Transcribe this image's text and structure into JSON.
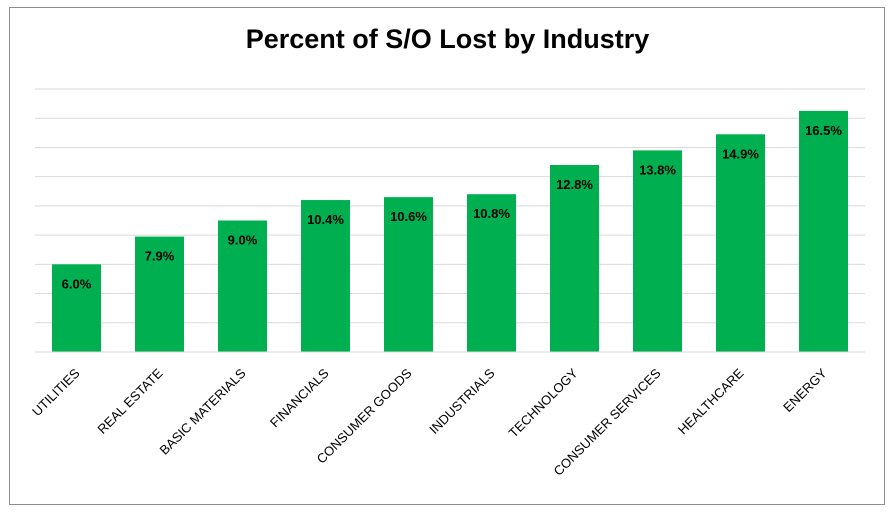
{
  "chart_data": {
    "type": "bar",
    "title": "Percent of S/O Lost by Industry",
    "categories": [
      "UTILITIES",
      "REAL ESTATE",
      "BASIC MATERIALS",
      "FINANCIALS",
      "CONSUMER GOODS",
      "INDUSTRIALS",
      "TECHNOLOGY",
      "CONSUMER SERVICES",
      "HEALTHCARE",
      "ENERGY"
    ],
    "values": [
      6.0,
      7.9,
      9.0,
      10.4,
      10.6,
      10.8,
      12.8,
      13.8,
      14.9,
      16.5
    ],
    "data_labels": [
      "6.0%",
      "7.9%",
      "9.0%",
      "10.4%",
      "10.6%",
      "10.8%",
      "12.8%",
      "13.8%",
      "14.9%",
      "16.5%"
    ],
    "ylim": [
      0,
      18
    ],
    "grid": true,
    "bar_color": "#00b050",
    "grid_color": "#d9d9d9"
  }
}
